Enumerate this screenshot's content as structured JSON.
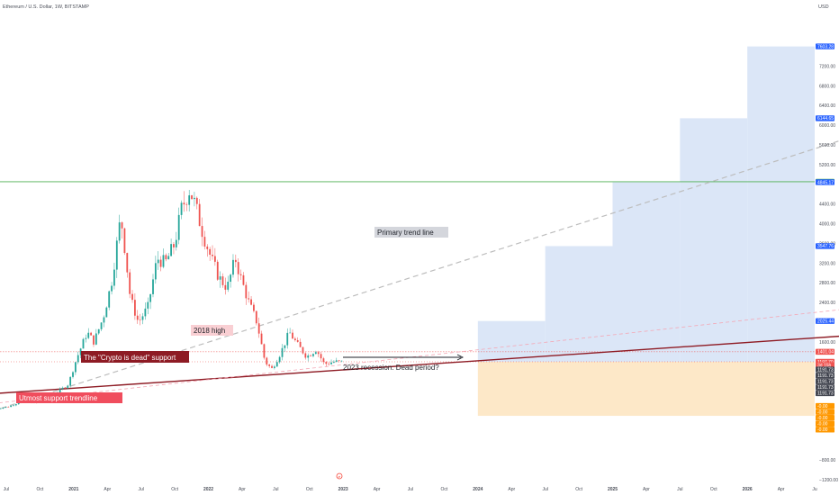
{
  "header": {
    "symbol_line": "Ethereum / U.S. Dollar, 1W, BITSTAMP",
    "currency": "USD"
  },
  "colors": {
    "background": "#ffffff",
    "up": "#26a69a",
    "down": "#ef5350",
    "green_line": "#4caf50",
    "support_line": "#8e1b24",
    "trend_dash": "#bdbdbd",
    "pink_dash": "#f4a7b5",
    "blue_zone": "#dbe6f7",
    "orange_zone": "#fde8c8"
  },
  "chart_data": {
    "type": "candlestick",
    "y_axis": {
      "ticks": [
        7200,
        6800,
        6400,
        6000,
        5600,
        5200,
        4800,
        4400,
        4000,
        3600,
        3200,
        2800,
        2400,
        2000,
        1600,
        1200,
        800,
        400,
        0,
        -400,
        -800,
        -1200,
        -1600
      ],
      "tick_labels": [
        "7200.00",
        "6800.00",
        "6400.00",
        "6000.00",
        "5600.00",
        "5200.00",
        "",
        "4400.00",
        "4000.00",
        "3600.00",
        "3200.00",
        "2800.00",
        "2400.00",
        "",
        "1600.00",
        "",
        "",
        "",
        "",
        "",
        "−800.00",
        "−1200.00",
        "−1600.00"
      ],
      "badges": [
        {
          "value": 7603.28,
          "label": "7603.28",
          "color": "#2962ff"
        },
        {
          "value": 6144.65,
          "label": "6144.65",
          "color": "#2962ff"
        },
        {
          "value": 4855.22,
          "label": "4855.22",
          "color": "#4caf50"
        },
        {
          "value": 4845.17,
          "label": "4845.17",
          "color": "#2962ff"
        },
        {
          "value": 3547.76,
          "label": "3547.76",
          "color": "#2962ff"
        },
        {
          "value": 2025.44,
          "label": "2025.44",
          "color": "#2962ff"
        },
        {
          "value": 1401.04,
          "label": "1401.04",
          "color": "#ef5350"
        },
        {
          "value": 1197.7,
          "label": "1197.70",
          "color": "#ef5350"
        },
        {
          "value": 1130,
          "label": "3d 15h",
          "color": "#ef5350"
        },
        {
          "value": 1040,
          "label": "1191.73",
          "color": "#434651"
        },
        {
          "value": 920,
          "label": "1191.73",
          "color": "#434651"
        },
        {
          "value": 800,
          "label": "1191.73",
          "color": "#434651"
        },
        {
          "value": 680,
          "label": "1191.73",
          "color": "#434651"
        },
        {
          "value": 560,
          "label": "1191.73",
          "color": "#434651"
        },
        {
          "value": 300,
          "label": "-0.00",
          "color": "#ff9800"
        },
        {
          "value": 180,
          "label": "-0.00",
          "color": "#ff9800"
        },
        {
          "value": 60,
          "label": "-0.00",
          "color": "#ff9800"
        },
        {
          "value": -60,
          "label": "-0.00",
          "color": "#ff9800"
        },
        {
          "value": -180,
          "label": "-0.00",
          "color": "#ff9800"
        }
      ]
    },
    "x_axis": {
      "labels": [
        {
          "t": 2020.5,
          "label": "Jul"
        },
        {
          "t": 2020.75,
          "label": "Oct"
        },
        {
          "t": 2021.0,
          "label": "2021"
        },
        {
          "t": 2021.25,
          "label": "Apr"
        },
        {
          "t": 2021.5,
          "label": "Jul"
        },
        {
          "t": 2021.75,
          "label": "Oct"
        },
        {
          "t": 2022.0,
          "label": "2022"
        },
        {
          "t": 2022.25,
          "label": "Apr"
        },
        {
          "t": 2022.5,
          "label": "Jul"
        },
        {
          "t": 2022.75,
          "label": "Oct"
        },
        {
          "t": 2023.0,
          "label": "2023"
        },
        {
          "t": 2023.25,
          "label": "Apr"
        },
        {
          "t": 2023.5,
          "label": "Jul"
        },
        {
          "t": 2023.75,
          "label": "Oct"
        },
        {
          "t": 2024.0,
          "label": "2024"
        },
        {
          "t": 2024.25,
          "label": "Apr"
        },
        {
          "t": 2024.5,
          "label": "Jul"
        },
        {
          "t": 2024.75,
          "label": "Oct"
        },
        {
          "t": 2025.0,
          "label": "2025"
        },
        {
          "t": 2025.25,
          "label": "Apr"
        },
        {
          "t": 2025.5,
          "label": "Jul"
        },
        {
          "t": 2025.75,
          "label": "Oct"
        },
        {
          "t": 2026.0,
          "label": "2026"
        },
        {
          "t": 2026.25,
          "label": "Apr"
        },
        {
          "t": 2026.5,
          "label": "Ju"
        }
      ]
    },
    "price_path": [
      [
        2020.4,
        230
      ],
      [
        2020.52,
        290
      ],
      [
        2020.62,
        400
      ],
      [
        2020.72,
        360
      ],
      [
        2020.8,
        400
      ],
      [
        2020.88,
        580
      ],
      [
        2020.96,
        740
      ],
      [
        2021.02,
        1250
      ],
      [
        2021.1,
        1800
      ],
      [
        2021.15,
        1600
      ],
      [
        2021.22,
        2100
      ],
      [
        2021.28,
        2800
      ],
      [
        2021.35,
        4150
      ],
      [
        2021.38,
        3500
      ],
      [
        2021.42,
        2500
      ],
      [
        2021.48,
        2000
      ],
      [
        2021.55,
        2300
      ],
      [
        2021.62,
        3300
      ],
      [
        2021.68,
        3200
      ],
      [
        2021.75,
        3600
      ],
      [
        2021.8,
        4300
      ],
      [
        2021.86,
        4700
      ],
      [
        2021.9,
        4400
      ],
      [
        2021.96,
        3800
      ],
      [
        2022.02,
        3300
      ],
      [
        2022.08,
        2900
      ],
      [
        2022.14,
        2700
      ],
      [
        2022.2,
        3300
      ],
      [
        2022.24,
        2900
      ],
      [
        2022.3,
        2400
      ],
      [
        2022.36,
        2000
      ],
      [
        2022.42,
        1200
      ],
      [
        2022.47,
        1050
      ],
      [
        2022.54,
        1400
      ],
      [
        2022.6,
        1800
      ],
      [
        2022.66,
        1550
      ],
      [
        2022.73,
        1300
      ],
      [
        2022.8,
        1450
      ],
      [
        2022.86,
        1150
      ],
      [
        2022.93,
        1200
      ],
      [
        2022.99,
        1192
      ]
    ],
    "markers": [
      {
        "name": "previous-high-line",
        "value": 4855.22
      },
      {
        "name": "high-2018-line",
        "value": 1401.04
      },
      {
        "name": "current-price-line",
        "value": 1197.7
      }
    ],
    "trendlines": [
      {
        "name": "primary-trend-line",
        "from": [
          2020.4,
          200
        ],
        "to": [
          2026.7,
          5700
        ],
        "style": "dashed"
      },
      {
        "name": "crypto-dead-support",
        "from": [
          2020.4,
          550
        ],
        "to": [
          2026.7,
          1720
        ],
        "style": "solid"
      },
      {
        "name": "utmost-support-trendline",
        "from": [
          2020.4,
          350
        ],
        "to": [
          2026.7,
          2260
        ],
        "style": "dashed-pink"
      }
    ],
    "zones": [
      {
        "name": "target-step-1",
        "t0": 2024.0,
        "t1": 2024.5,
        "v0": 1197.7,
        "v1": 2025.44
      },
      {
        "name": "target-step-2",
        "t0": 2024.5,
        "t1": 2025.0,
        "v0": 1197.7,
        "v1": 3547.76
      },
      {
        "name": "target-step-3",
        "t0": 2025.0,
        "t1": 2025.5,
        "v0": 1197.7,
        "v1": 4845.17
      },
      {
        "name": "target-step-4",
        "t0": 2025.5,
        "t1": 2026.0,
        "v0": 1197.7,
        "v1": 6144.65
      },
      {
        "name": "target-step-5",
        "t0": 2026.0,
        "t1": 2026.5,
        "v0": 1197.7,
        "v1": 7603.28
      },
      {
        "name": "stop-zone",
        "t0": 2024.0,
        "t1": 2026.5,
        "v0": 1197.7,
        "v1": 100
      }
    ],
    "annotations": [
      {
        "name": "primary-trend-label",
        "text": "Primary trend line"
      },
      {
        "name": "high-2018-label",
        "text": "2018 high"
      },
      {
        "name": "crypto-dead-label",
        "text": "The \"Crypto is dead\" support"
      },
      {
        "name": "recession-label",
        "text": "2023 recession. Dead period?"
      },
      {
        "name": "utmost-label",
        "text": "Utmost support trendline"
      }
    ]
  }
}
